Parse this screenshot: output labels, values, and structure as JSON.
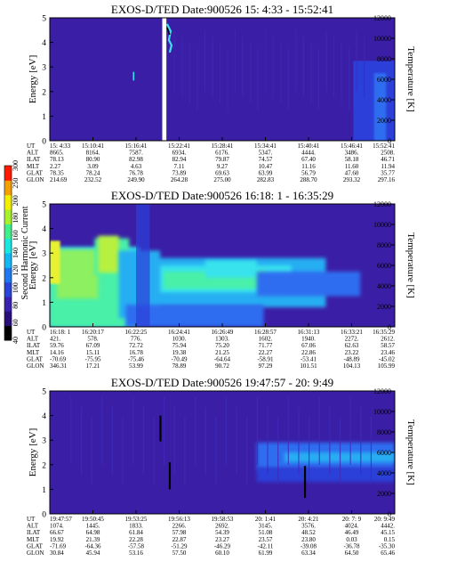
{
  "colors": {
    "background": "#3b1ea6",
    "bands": [
      "#3f2ab8",
      "#2c3fd8",
      "#2f6df0",
      "#27aef2",
      "#39e3ee",
      "#49f0a8"
    ],
    "colorbar": [
      "#000000",
      "#2a0f7a",
      "#3a22b0",
      "#2a44d8",
      "#1f78f0",
      "#13b8f2",
      "#1ae8e0",
      "#3ff08a",
      "#a8f02a",
      "#f0f000",
      "#f4a000",
      "#ff1a00"
    ]
  },
  "colorbar": {
    "label": "Second Harmonic Current",
    "ticks": [
      "40",
      "60",
      "80",
      "100",
      "120",
      "140",
      "160",
      "180",
      "200",
      "250",
      "300"
    ]
  },
  "chart_data": [
    {
      "type": "heatmap",
      "title": "EXOS-D/TED  Date:900526  15: 4:33 - 15:52:41",
      "ylabel": "Energy [eV]",
      "y2label": "Temperature [K]",
      "ylim": [
        0,
        5
      ],
      "y2lim": [
        0,
        12000
      ],
      "yticks": [
        "0",
        "1",
        "2",
        "3",
        "4",
        "5"
      ],
      "y2ticks": [
        "0",
        "2000",
        "4000",
        "6000",
        "8000",
        "10000",
        "12000"
      ],
      "orbit_labels": [
        "UT",
        "ALT",
        "ILAT",
        "MLT",
        "GLAT",
        "GLON"
      ],
      "orbit_columns": [
        [
          "15: 4:33",
          "8665.",
          "78.13",
          "2.27",
          "78.35",
          "214.69"
        ],
        [
          "15:10:41",
          "8164.",
          "80.90",
          "3.09",
          "78.24",
          "232.52"
        ],
        [
          "15:16:41",
          "7587.",
          "82.98",
          "4.63",
          "76.78",
          "249.90"
        ],
        [
          "15:22:41",
          "6934.",
          "82.94",
          "7.11",
          "73.89",
          "264.28"
        ],
        [
          "15:28:41",
          "6176.",
          "79.87",
          "9.27",
          "69.63",
          "275.00"
        ],
        [
          "15:34:41",
          "5347.",
          "74.57",
          "10.47",
          "63.99",
          "282.83"
        ],
        [
          "15:40:41",
          "4444.",
          "67.40",
          "11.16",
          "56.79",
          "288.70"
        ],
        [
          "15:46:41",
          "3486.",
          "58.18",
          "11.60",
          "47.60",
          "293.32"
        ],
        [
          "15:52:41",
          "2508.",
          "46.71",
          "11.94",
          "35.77",
          "297.16"
        ]
      ]
    },
    {
      "type": "heatmap",
      "title": "EXOS-D/TED  Date:900526  16:18: 1 - 16:35:29",
      "ylabel": "Energy [eV]",
      "y2label": "Temperature [K]",
      "ylim": [
        0,
        5
      ],
      "y2lim": [
        0,
        12000
      ],
      "yticks": [
        "0",
        "1",
        "2",
        "3",
        "4",
        "5"
      ],
      "y2ticks": [
        "0",
        "2000",
        "4000",
        "6000",
        "8000",
        "10000",
        "12000"
      ],
      "orbit_labels": [
        "UT",
        "ALT",
        "ILAT",
        "MLT",
        "GLAT",
        "GLON"
      ],
      "orbit_columns": [
        [
          "16:18: 1",
          "421.",
          "59.76",
          "14.16",
          "-70.69",
          "346.31"
        ],
        [
          "16:20:17",
          "578.",
          "67.09",
          "15.11",
          "-75.95",
          "17.21"
        ],
        [
          "16:22:25",
          "776.",
          "72.72",
          "16.78",
          "-75.46",
          "53.99"
        ],
        [
          "16:24:41",
          "1030.",
          "75.94",
          "19.38",
          "-70.49",
          "78.89"
        ],
        [
          "16:26:49",
          "1303.",
          "75.20",
          "21.25",
          "-64.64",
          "90.72"
        ],
        [
          "16:28:57",
          "1602.",
          "71.77",
          "22.27",
          "-58.91",
          "97.29"
        ],
        [
          "16:31:13",
          "1940.",
          "67.06",
          "22.86",
          "-53.41",
          "101.51"
        ],
        [
          "16:33:21",
          "2272.",
          "62.63",
          "23.22",
          "-48.89",
          "104.13"
        ],
        [
          "16:35:29",
          "2612.",
          "58.57",
          "23.46",
          "-45.02",
          "105.99"
        ]
      ]
    },
    {
      "type": "heatmap",
      "title": "EXOS-D/TED  Date:900526  19:47:57 - 20: 9:49",
      "ylabel": "Energy [eV]",
      "y2label": "Temperature [K]",
      "ylim": [
        0,
        5
      ],
      "y2lim": [
        0,
        12000
      ],
      "yticks": [
        "0",
        "1",
        "2",
        "3",
        "4",
        "5"
      ],
      "y2ticks": [
        "0",
        "2000",
        "4000",
        "6000",
        "8000",
        "10000",
        "12000"
      ],
      "orbit_labels": [
        "UT",
        "ALT",
        "ILAT",
        "MLT",
        "GLAT",
        "GLON"
      ],
      "orbit_columns": [
        [
          "19:47:57",
          "1074.",
          "66.67",
          "19.92",
          "-71.69",
          "30.84"
        ],
        [
          "19:50:45",
          "1445.",
          "64.98",
          "21.39",
          "-64.36",
          "45.94"
        ],
        [
          "19:53:25",
          "1833.",
          "61.84",
          "22.28",
          "-57.58",
          "53.16"
        ],
        [
          "19:56:13",
          "2266.",
          "57.98",
          "22.87",
          "-51.29",
          "57.50"
        ],
        [
          "19:58:53",
          "2692.",
          "54.39",
          "23.27",
          "-46.29",
          "60.10"
        ],
        [
          "20: 1:41",
          "3145.",
          "51.08",
          "23.57",
          "-42.11",
          "61.99"
        ],
        [
          "20: 4:21",
          "3576.",
          "48.52",
          "23.80",
          "-39.08",
          "63.34"
        ],
        [
          "20: 7: 9",
          "4024.",
          "46.49",
          "0.03",
          "-36.78",
          "64.50"
        ],
        [
          "20: 9:49",
          "4442.",
          "45.15",
          "0.15",
          "-35.30",
          "65.46"
        ]
      ]
    }
  ]
}
